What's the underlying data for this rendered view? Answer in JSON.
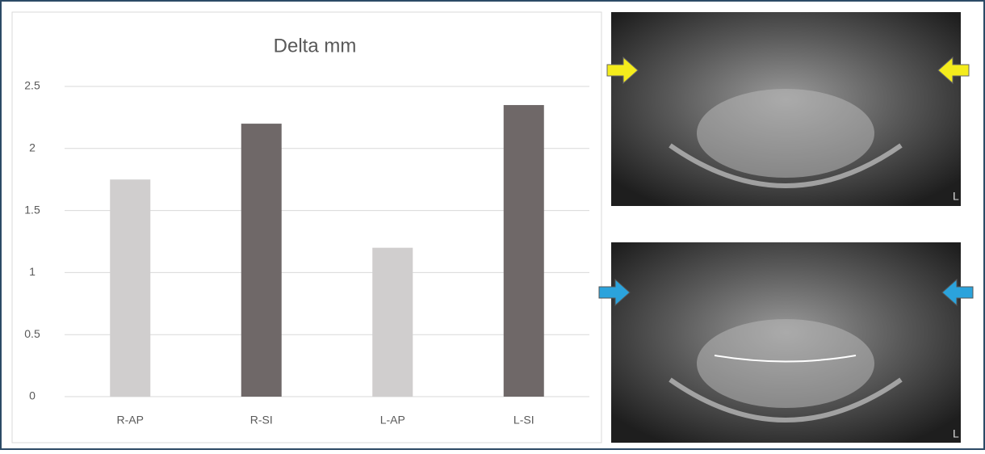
{
  "chart_data": {
    "type": "bar",
    "title": "Delta mm",
    "categories": [
      "R-AP",
      "R-SI",
      "L-AP",
      "L-SI"
    ],
    "values": [
      1.75,
      2.2,
      1.2,
      2.35
    ],
    "colors": [
      "#d0cece",
      "#6f6868",
      "#d0cece",
      "#6f6868"
    ],
    "ylim": [
      0,
      2.5
    ],
    "yticks": [
      0,
      0.5,
      1,
      1.5,
      2,
      2.5
    ],
    "grid": true
  },
  "images": [
    {
      "corner_label": "L"
    },
    {
      "corner_label": "L"
    }
  ]
}
